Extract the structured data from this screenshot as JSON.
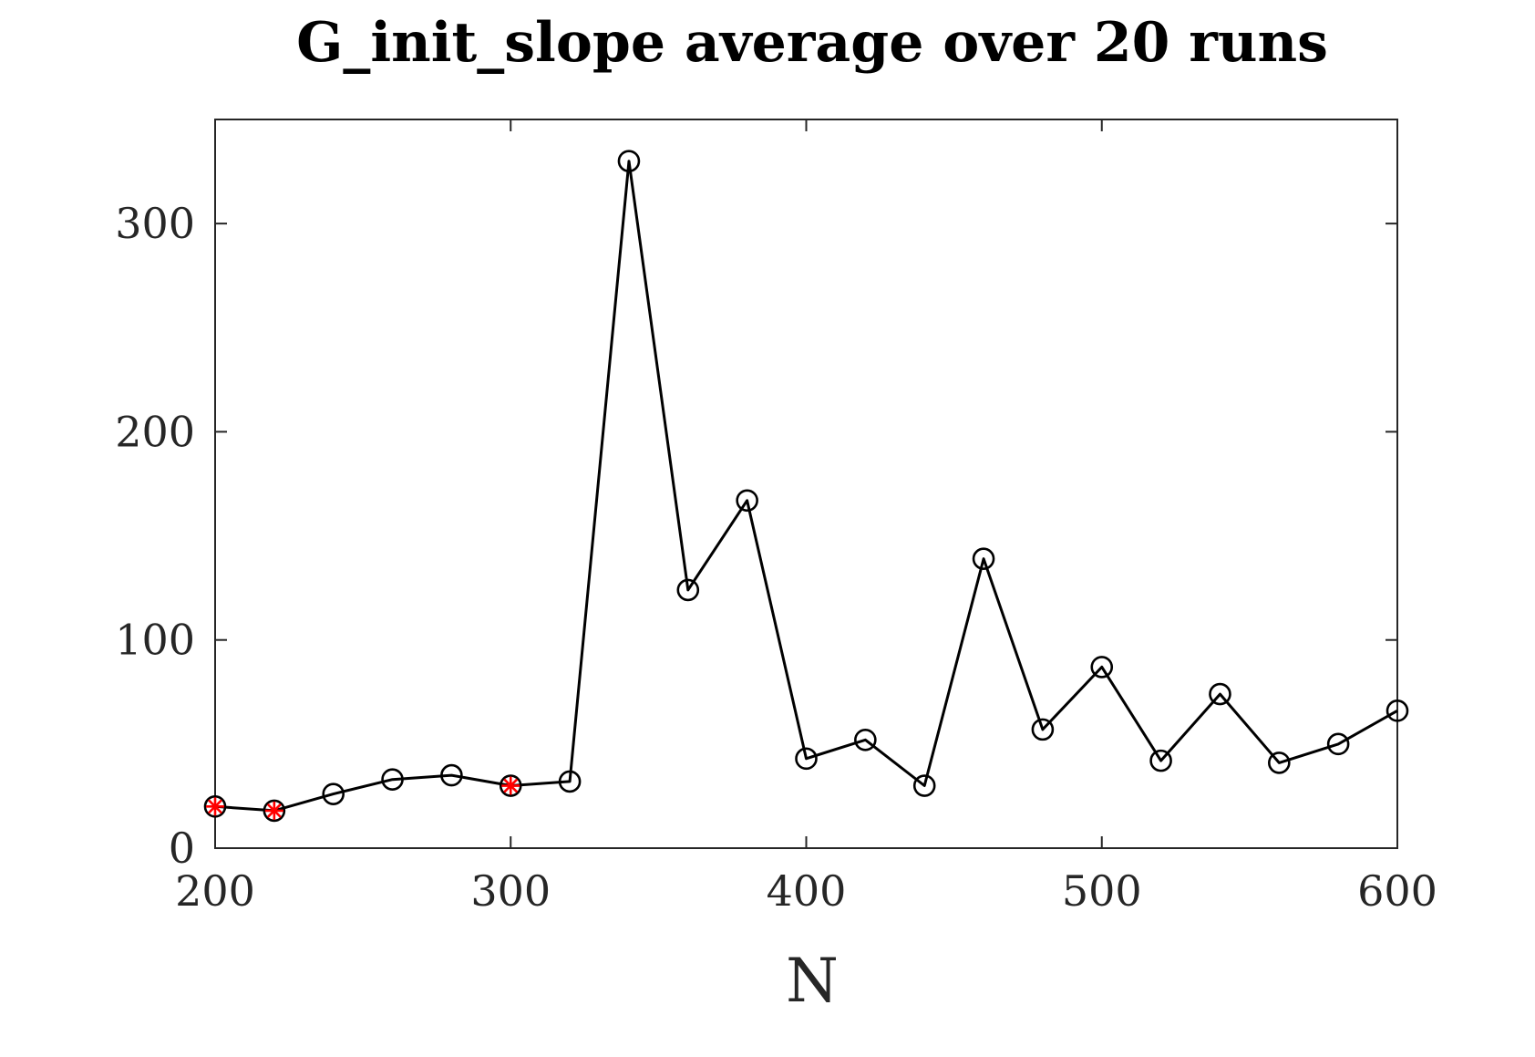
{
  "chart_data": {
    "type": "line",
    "title": "G_init_slope average over 20 runs",
    "xlabel": "N",
    "ylabel": "",
    "xlim": [
      200,
      600
    ],
    "ylim": [
      0,
      350
    ],
    "xticks": [
      200,
      300,
      400,
      500,
      600
    ],
    "yticks": [
      0,
      100,
      200,
      300
    ],
    "grid": false,
    "legend": "none",
    "colors": {
      "line": "#000000",
      "axis": "#262626",
      "highlight": "#ff0000"
    },
    "series": [
      {
        "marker": "circle",
        "x": [
          200,
          220,
          240,
          260,
          280,
          300,
          320,
          340,
          360,
          380,
          400,
          420,
          440,
          460,
          480,
          500,
          520,
          540,
          560,
          580,
          600
        ],
        "y": [
          20,
          18,
          26,
          33,
          35,
          30,
          32,
          330,
          124,
          167,
          43,
          52,
          30,
          139,
          57,
          87,
          42,
          74,
          41,
          50,
          66
        ]
      }
    ],
    "highlighted_points": {
      "marker": "asterisk",
      "x": [
        200,
        220,
        300
      ],
      "y": [
        20,
        18,
        30
      ]
    }
  }
}
